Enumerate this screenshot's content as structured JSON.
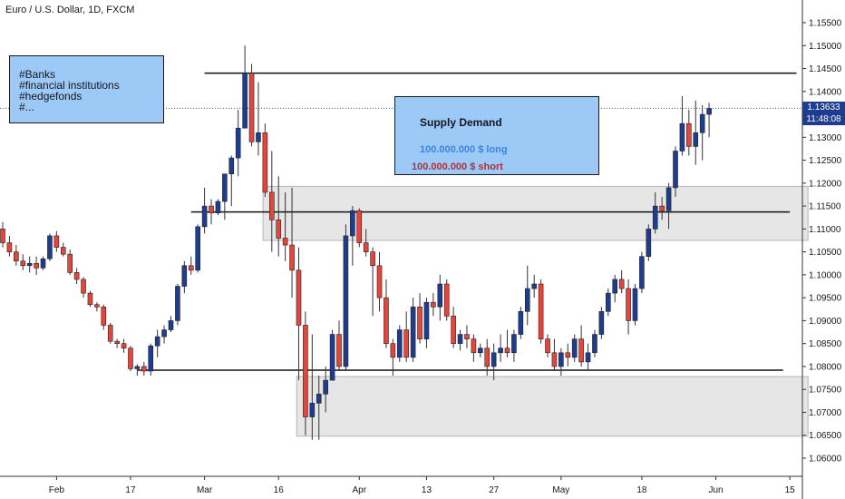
{
  "header": {
    "title": "Euro / U.S. Dollar, 1D, FXCM"
  },
  "annotations": {
    "banks_lines": [
      "#Banks",
      "#financial institutions",
      "#hedgefonds",
      "#..."
    ],
    "supply_demand": {
      "title": "Supply Demand",
      "long_label": "100.000.000 $ long",
      "short_label": "100.000.000 $ short"
    }
  },
  "price_axis": {
    "current_price": "1.13633",
    "countdown": "11:48:08"
  },
  "colors": {
    "up": "#1e3d8f",
    "down": "#e5453a",
    "zone_fill": "#e6e6e6",
    "note_fill": "#9cc9f5",
    "price_line": "#2f5fa8"
  },
  "chart_data": {
    "type": "candlestick",
    "symbol": "Euro / U.S. Dollar",
    "timeframe": "1D",
    "source": "FXCM",
    "ylim": [
      1.0545,
      1.1595
    ],
    "y_ticks": [
      "1.06000",
      "1.06500",
      "1.07000",
      "1.07500",
      "1.08000",
      "1.08500",
      "1.09000",
      "1.09500",
      "1.10000",
      "1.10500",
      "1.11000",
      "1.11500",
      "1.12000",
      "1.12500",
      "1.13000",
      "1.13500",
      "1.14000",
      "1.14500",
      "1.15000",
      "1.15500"
    ],
    "x_ticks": [
      {
        "label": "Feb",
        "index": 8
      },
      {
        "label": "17",
        "index": 19
      },
      {
        "label": "Mar",
        "index": 30
      },
      {
        "label": "16",
        "index": 41
      },
      {
        "label": "Apr",
        "index": 53
      },
      {
        "label": "13",
        "index": 63
      },
      {
        "label": "Apr27",
        "label_display": "27",
        "index": 73
      },
      {
        "label": "May",
        "index": 83
      },
      {
        "label": "18",
        "index": 95
      },
      {
        "label": "Jun",
        "index": 106
      },
      {
        "label": "15",
        "index": 117
      }
    ],
    "horizontal_lines": [
      {
        "price": 1.144,
        "from_index": 30,
        "to_index": 118
      },
      {
        "price": 1.1137,
        "from_index": 28,
        "to_index": 117
      },
      {
        "price": 1.0792,
        "from_index": 20,
        "to_index": 116
      }
    ],
    "zones": [
      {
        "top": 1.1193,
        "bottom": 1.1075,
        "from_index": 38.7,
        "to_index": 119.7
      },
      {
        "top": 1.0778,
        "bottom": 1.0648,
        "from_index": 43.7,
        "to_index": 119.7
      }
    ],
    "current_price_value": 1.13633,
    "candles": [
      [
        1.11,
        1.1115,
        1.106,
        1.107
      ],
      [
        1.107,
        1.1085,
        1.104,
        1.105
      ],
      [
        1.105,
        1.1065,
        1.102,
        1.103
      ],
      [
        1.103,
        1.1045,
        1.101,
        1.102
      ],
      [
        1.102,
        1.104,
        1.1005,
        1.1025
      ],
      [
        1.1025,
        1.104,
        1.1,
        1.1015
      ],
      [
        1.1015,
        1.104,
        1.101,
        1.1035
      ],
      [
        1.1035,
        1.109,
        1.103,
        1.1085
      ],
      [
        1.1085,
        1.1095,
        1.105,
        1.106
      ],
      [
        1.106,
        1.107,
        1.104,
        1.1045
      ],
      [
        1.1045,
        1.1055,
        1.1,
        1.1005
      ],
      [
        1.1005,
        1.1015,
        1.098,
        1.099
      ],
      [
        1.099,
        1.0995,
        1.095,
        1.096
      ],
      [
        1.096,
        1.0965,
        1.093,
        1.0935
      ],
      [
        1.0935,
        1.094,
        1.092,
        1.093
      ],
      [
        1.093,
        1.0935,
        1.088,
        1.089
      ],
      [
        1.089,
        1.0895,
        1.085,
        1.0855
      ],
      [
        1.0855,
        1.086,
        1.084,
        1.085
      ],
      [
        1.085,
        1.086,
        1.083,
        1.084
      ],
      [
        1.084,
        1.0845,
        1.079,
        1.0795
      ],
      [
        1.0795,
        1.0805,
        1.078,
        1.08
      ],
      [
        1.08,
        1.081,
        1.078,
        1.079
      ],
      [
        1.079,
        1.085,
        1.078,
        1.0845
      ],
      [
        1.0845,
        1.088,
        1.082,
        1.0865
      ],
      [
        1.0865,
        1.089,
        1.085,
        1.088
      ],
      [
        1.088,
        1.091,
        1.0875,
        1.09
      ],
      [
        1.09,
        1.098,
        1.089,
        1.0975
      ],
      [
        1.0975,
        1.103,
        1.096,
        1.102
      ],
      [
        1.102,
        1.104,
        1.1,
        1.101
      ],
      [
        1.101,
        1.111,
        1.1005,
        1.1105
      ],
      [
        1.1105,
        1.119,
        1.109,
        1.115
      ],
      [
        1.115,
        1.1165,
        1.111,
        1.1135
      ],
      [
        1.1135,
        1.1165,
        1.113,
        1.116
      ],
      [
        1.116,
        1.122,
        1.112,
        1.122
      ],
      [
        1.122,
        1.126,
        1.115,
        1.1255
      ],
      [
        1.1255,
        1.136,
        1.1215,
        1.132
      ],
      [
        1.132,
        1.15,
        1.132,
        1.144
      ],
      [
        1.144,
        1.146,
        1.128,
        1.129
      ],
      [
        1.129,
        1.142,
        1.126,
        1.131
      ],
      [
        1.131,
        1.133,
        1.117,
        1.118
      ],
      [
        1.118,
        1.127,
        1.105,
        1.112
      ],
      [
        1.112,
        1.1215,
        1.104,
        1.108
      ],
      [
        1.108,
        1.118,
        1.103,
        1.1065
      ],
      [
        1.1065,
        1.119,
        1.095,
        1.101
      ],
      [
        1.101,
        1.106,
        1.077,
        1.089
      ],
      [
        1.089,
        1.092,
        1.065,
        1.069
      ],
      [
        1.069,
        1.087,
        1.064,
        1.072
      ],
      [
        1.072,
        1.078,
        1.064,
        1.074
      ],
      [
        1.074,
        1.08,
        1.07,
        1.077
      ],
      [
        1.077,
        1.088,
        1.077,
        1.087
      ],
      [
        1.087,
        1.09,
        1.079,
        1.08
      ],
      [
        1.08,
        1.111,
        1.079,
        1.1085
      ],
      [
        1.1085,
        1.115,
        1.102,
        1.114
      ],
      [
        1.114,
        1.1145,
        1.106,
        1.107
      ],
      [
        1.107,
        1.11,
        1.104,
        1.105
      ],
      [
        1.105,
        1.106,
        1.091,
        1.102
      ],
      [
        1.102,
        1.105,
        1.092,
        1.095
      ],
      [
        1.095,
        1.099,
        1.084,
        1.085
      ],
      [
        1.085,
        1.086,
        1.078,
        1.082
      ],
      [
        1.082,
        1.089,
        1.081,
        1.088
      ],
      [
        1.088,
        1.092,
        1.081,
        1.082
      ],
      [
        1.082,
        1.095,
        1.081,
        1.093
      ],
      [
        1.093,
        1.096,
        1.085,
        1.086
      ],
      [
        1.086,
        1.095,
        1.084,
        1.094
      ],
      [
        1.094,
        1.096,
        1.091,
        1.093
      ],
      [
        1.093,
        1.1,
        1.09,
        1.098
      ],
      [
        1.098,
        1.099,
        1.09,
        1.091
      ],
      [
        1.091,
        1.093,
        1.084,
        1.085
      ],
      [
        1.085,
        1.088,
        1.0835,
        1.087
      ],
      [
        1.087,
        1.089,
        1.084,
        1.086
      ],
      [
        1.086,
        1.087,
        1.081,
        1.083
      ],
      [
        1.083,
        1.085,
        1.082,
        1.084
      ],
      [
        1.084,
        1.086,
        1.078,
        1.08
      ],
      [
        1.08,
        1.085,
        1.077,
        1.083
      ],
      [
        1.083,
        1.087,
        1.081,
        1.084
      ],
      [
        1.084,
        1.088,
        1.082,
        1.083
      ],
      [
        1.083,
        1.088,
        1.081,
        1.087
      ],
      [
        1.087,
        1.093,
        1.086,
        1.092
      ],
      [
        1.092,
        1.102,
        1.089,
        1.097
      ],
      [
        1.097,
        1.1,
        1.095,
        1.098
      ],
      [
        1.098,
        1.099,
        1.085,
        1.086
      ],
      [
        1.086,
        1.087,
        1.082,
        1.083
      ],
      [
        1.083,
        1.086,
        1.079,
        1.08
      ],
      [
        1.08,
        1.084,
        1.078,
        1.083
      ],
      [
        1.083,
        1.085,
        1.08,
        1.082
      ],
      [
        1.082,
        1.087,
        1.081,
        1.086
      ],
      [
        1.086,
        1.089,
        1.08,
        1.081
      ],
      [
        1.081,
        1.085,
        1.079,
        1.083
      ],
      [
        1.083,
        1.088,
        1.082,
        1.087
      ],
      [
        1.087,
        1.093,
        1.086,
        1.092
      ],
      [
        1.092,
        1.097,
        1.091,
        1.096
      ],
      [
        1.096,
        1.1,
        1.094,
        1.099
      ],
      [
        1.099,
        1.101,
        1.096,
        1.097
      ],
      [
        1.097,
        1.099,
        1.087,
        1.09
      ],
      [
        1.09,
        1.098,
        1.089,
        1.097
      ],
      [
        1.097,
        1.105,
        1.096,
        1.104
      ],
      [
        1.104,
        1.111,
        1.103,
        1.11
      ],
      [
        1.11,
        1.118,
        1.109,
        1.115
      ],
      [
        1.115,
        1.117,
        1.112,
        1.114
      ],
      [
        1.114,
        1.12,
        1.11,
        1.119
      ],
      [
        1.119,
        1.128,
        1.117,
        1.127
      ],
      [
        1.127,
        1.139,
        1.126,
        1.133
      ],
      [
        1.133,
        1.136,
        1.126,
        1.128
      ],
      [
        1.128,
        1.138,
        1.124,
        1.131
      ],
      [
        1.131,
        1.137,
        1.125,
        1.135
      ],
      [
        1.135,
        1.1375,
        1.13,
        1.1363
      ]
    ]
  }
}
